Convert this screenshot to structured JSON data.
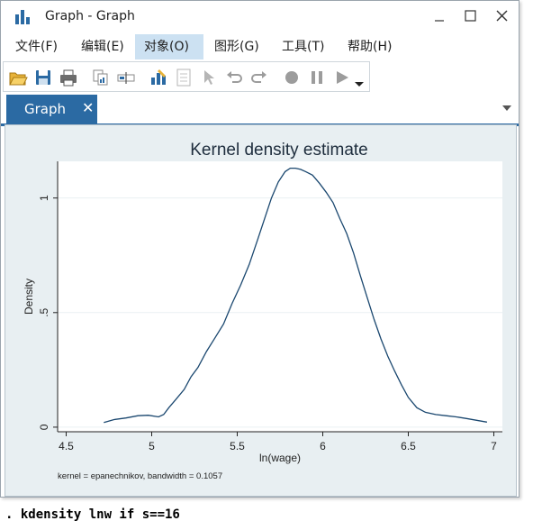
{
  "window": {
    "title": "Graph - Graph",
    "accent_color": "#2b6aa3"
  },
  "menu": {
    "items": [
      {
        "label": "文件(F)",
        "active": false
      },
      {
        "label": "编辑(E)",
        "active": false
      },
      {
        "label": "对象(O)",
        "active": true
      },
      {
        "label": "图形(G)",
        "active": false
      },
      {
        "label": "工具(T)",
        "active": false
      },
      {
        "label": "帮助(H)",
        "active": false
      }
    ]
  },
  "toolbar": {
    "icons": [
      "open-icon",
      "save-icon",
      "print-icon",
      "copy-graph-icon",
      "rename-icon",
      "graph-editor-icon",
      "properties-icon",
      "pointer-icon",
      "undo-icon",
      "redo-icon",
      "record-icon",
      "pause-icon",
      "play-icon",
      "dropdown-icon"
    ]
  },
  "tabs": [
    {
      "label": "Graph",
      "close": "✕"
    }
  ],
  "chart_data": {
    "type": "line",
    "title": "Kernel density estimate",
    "xlabel": "ln(wage)",
    "ylabel": "Density",
    "note": "kernel = epanechnikov, bandwidth = 0.1057",
    "xlim": [
      4.45,
      7.05
    ],
    "ylim": [
      -0.02,
      1.16
    ],
    "xticks": [
      {
        "value": 4.5,
        "label": "4.5"
      },
      {
        "value": 5,
        "label": "5"
      },
      {
        "value": 5.5,
        "label": "5.5"
      },
      {
        "value": 6,
        "label": "6"
      },
      {
        "value": 6.5,
        "label": "6.5"
      },
      {
        "value": 7,
        "label": "7"
      }
    ],
    "yticks": [
      {
        "value": 0,
        "label": "0"
      },
      {
        "value": 0.5,
        "label": ".5"
      },
      {
        "value": 1,
        "label": "1"
      }
    ],
    "grid": true,
    "line_color": "#1a476f",
    "series": [
      {
        "x": [
          4.72,
          4.78,
          4.85,
          4.92,
          4.98,
          5.04,
          5.07,
          5.1,
          5.14,
          5.19,
          5.23,
          5.27,
          5.32,
          5.37,
          5.42,
          5.47,
          5.52,
          5.57,
          5.62,
          5.66,
          5.7,
          5.74,
          5.78,
          5.81,
          5.84,
          5.87,
          5.9,
          5.94,
          5.98,
          6.02,
          6.06,
          6.1,
          6.14,
          6.18,
          6.22,
          6.26,
          6.3,
          6.34,
          6.38,
          6.42,
          6.46,
          6.5,
          6.55,
          6.6,
          6.66,
          6.72,
          6.78,
          6.84,
          6.9,
          6.96
        ],
        "y": [
          0.02,
          0.033,
          0.04,
          0.05,
          0.052,
          0.045,
          0.055,
          0.085,
          0.12,
          0.165,
          0.22,
          0.26,
          0.33,
          0.39,
          0.45,
          0.54,
          0.62,
          0.71,
          0.82,
          0.91,
          1.0,
          1.07,
          1.115,
          1.13,
          1.13,
          1.125,
          1.115,
          1.1,
          1.065,
          1.025,
          0.98,
          0.91,
          0.845,
          0.76,
          0.66,
          0.565,
          0.47,
          0.385,
          0.31,
          0.245,
          0.185,
          0.13,
          0.085,
          0.065,
          0.055,
          0.05,
          0.045,
          0.038,
          0.03,
          0.022
        ]
      }
    ]
  },
  "command": {
    "text": ". kdensity lnw if s==16"
  }
}
